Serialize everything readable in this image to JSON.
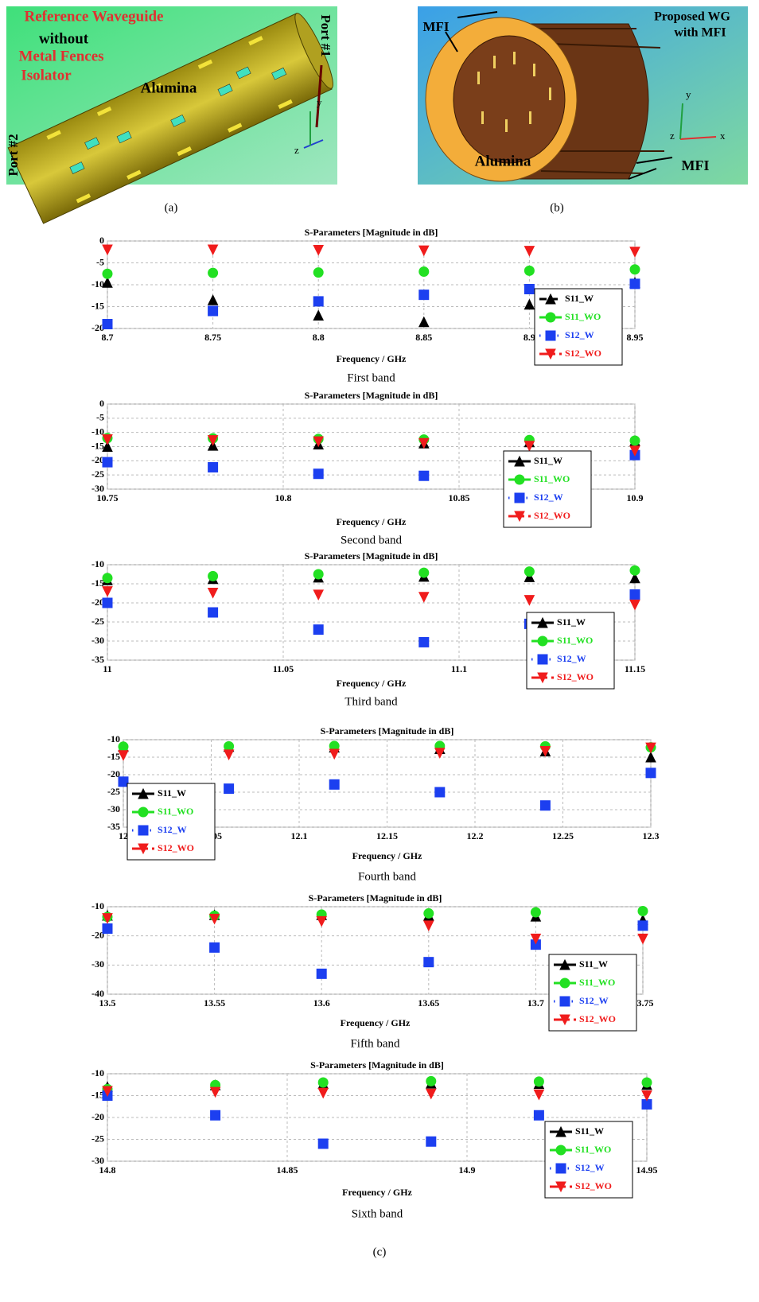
{
  "panel_a": {
    "texts": [
      "Reference Waveguide",
      "without",
      "Metal Fences",
      "Isolator",
      "Alumina",
      "Port #1",
      "Port #2"
    ],
    "axes": [
      "y",
      "z"
    ],
    "caption": "(a)"
  },
  "panel_b": {
    "texts": [
      "MFI",
      "Proposed WG",
      "with MFI",
      "Alumina",
      "MFI"
    ],
    "axes": [
      "y",
      "z",
      "x"
    ],
    "caption": "(b)"
  },
  "panel_c_caption": "(c)",
  "chart_data": [
    {
      "type": "line",
      "title": "S-Parameters [Magnitude in dB]",
      "x_label": "Frequency / GHz",
      "caption": "First band",
      "x": [
        8.7,
        8.725,
        8.75,
        8.775,
        8.8,
        8.825,
        8.85,
        8.875,
        8.9,
        8.925,
        8.95
      ],
      "xlim": [
        8.7,
        8.95
      ],
      "xticks": [
        8.7,
        8.75,
        8.8,
        8.85,
        8.9,
        8.95
      ],
      "ylim": [
        -20,
        0
      ],
      "yticks": [
        0,
        -5,
        -10,
        -15,
        -20
      ],
      "grid": true,
      "series": [
        {
          "name": "S11_W",
          "color": "#000000",
          "line_style": "dashed",
          "marker": "triangle-up",
          "values": [
            -9.5,
            -11.5,
            -13.5,
            -15,
            -17,
            -18.3,
            -18.5,
            -16.5,
            -14.5,
            -12,
            -9.5
          ]
        },
        {
          "name": "S11_WO",
          "color": "#22e022",
          "line_style": "solid",
          "marker": "circle",
          "values": [
            -7.5,
            -7.4,
            -7.3,
            -7.3,
            -7.2,
            -7.1,
            -7,
            -6.9,
            -6.8,
            -6.7,
            -6.5
          ]
        },
        {
          "name": "S12_W",
          "color": "#1c3ff0",
          "line_style": "dotted",
          "marker": "square",
          "values": [
            -19,
            -17.5,
            -16,
            -14.8,
            -13.8,
            -13,
            -12.3,
            -11.7,
            -11,
            -10.3,
            -9.8
          ]
        },
        {
          "name": "S12_WO",
          "color": "#f01c1c",
          "line_style": "dashdot",
          "marker": "triangle-down",
          "values": [
            -2,
            -2,
            -2,
            -2.1,
            -2.1,
            -2.2,
            -2.2,
            -2.3,
            -2.3,
            -2.4,
            -2.5
          ]
        }
      ]
    },
    {
      "type": "line",
      "title": "S-Parameters [Magnitude in dB]",
      "x_label": "Frequency / GHz",
      "caption": "Second band",
      "x": [
        10.75,
        10.765,
        10.78,
        10.795,
        10.81,
        10.825,
        10.84,
        10.855,
        10.87,
        10.885,
        10.9
      ],
      "xlim": [
        10.75,
        10.9
      ],
      "xticks": [
        10.75,
        10.8,
        10.85,
        10.9
      ],
      "ylim": [
        -30,
        0
      ],
      "yticks": [
        0,
        -5,
        -10,
        -15,
        -20,
        -25,
        -30
      ],
      "grid": true,
      "series": [
        {
          "name": "S11_W",
          "color": "#000000",
          "line_style": "solid",
          "marker": "triangle-up",
          "values": [
            -15,
            -14.8,
            -14.6,
            -14.4,
            -14.2,
            -14,
            -13.8,
            -13.6,
            -13.4,
            -13.2,
            -13
          ]
        },
        {
          "name": "S11_WO",
          "color": "#22e022",
          "line_style": "solid",
          "marker": "circle",
          "values": [
            -12,
            -12,
            -12.1,
            -12.2,
            -12.3,
            -12.4,
            -12.5,
            -12.6,
            -12.7,
            -12.8,
            -12.9
          ]
        },
        {
          "name": "S12_W",
          "color": "#1c3ff0",
          "line_style": "dotted",
          "marker": "square",
          "values": [
            -20.5,
            -21.3,
            -22.3,
            -23.5,
            -24.6,
            -25.1,
            -25.3,
            -24.6,
            -23,
            -20.5,
            -18
          ]
        },
        {
          "name": "S12_WO",
          "color": "#f01c1c",
          "line_style": "dashdot",
          "marker": "triangle-down",
          "values": [
            -12.5,
            -12.6,
            -12.8,
            -13,
            -13.2,
            -13.5,
            -13.8,
            -14.2,
            -14.8,
            -15.5,
            -16.5
          ]
        }
      ]
    },
    {
      "type": "line",
      "title": "S-Parameters [Magnitude in dB]",
      "x_label": "Frequency / GHz",
      "caption": "Third band",
      "x": [
        11,
        11.015,
        11.03,
        11.045,
        11.06,
        11.075,
        11.09,
        11.105,
        11.12,
        11.135,
        11.15
      ],
      "xlim": [
        11,
        11.15
      ],
      "xticks": [
        11,
        11.05,
        11.1,
        11.15
      ],
      "ylim": [
        -35,
        -10
      ],
      "yticks": [
        -10,
        -15,
        -20,
        -25,
        -30,
        -35
      ],
      "grid": true,
      "series": [
        {
          "name": "S11_W",
          "color": "#000000",
          "line_style": "solid",
          "marker": "triangle-up",
          "values": [
            -14,
            -13.9,
            -13.7,
            -13.5,
            -13.3,
            -13.2,
            -13.1,
            -13.1,
            -13.2,
            -13.3,
            -13.5
          ]
        },
        {
          "name": "S11_WO",
          "color": "#22e022",
          "line_style": "solid",
          "marker": "circle",
          "values": [
            -13.5,
            -13.3,
            -13,
            -12.8,
            -12.5,
            -12.3,
            -12.1,
            -12,
            -11.8,
            -11.7,
            -11.5
          ]
        },
        {
          "name": "S12_W",
          "color": "#1c3ff0",
          "line_style": "dotted",
          "marker": "square",
          "values": [
            -20,
            -20.8,
            -22.5,
            -24.5,
            -27,
            -29.5,
            -30.3,
            -28.5,
            -25.5,
            -22,
            -17.8
          ]
        },
        {
          "name": "S12_WO",
          "color": "#f01c1c",
          "line_style": "dashdot",
          "marker": "triangle-down",
          "values": [
            -17,
            -17.2,
            -17.4,
            -17.6,
            -17.9,
            -18.2,
            -18.5,
            -18.9,
            -19.3,
            -19.8,
            -20.5
          ]
        }
      ]
    },
    {
      "type": "line",
      "title": "S-Parameters [Magnitude in dB]",
      "x_label": "Frequency / GHz",
      "caption": "Fourth band",
      "x": [
        12,
        12.03,
        12.06,
        12.09,
        12.12,
        12.15,
        12.18,
        12.21,
        12.24,
        12.27,
        12.3
      ],
      "xlim": [
        12,
        12.3
      ],
      "xticks": [
        12,
        12.05,
        12.1,
        12.15,
        12.2,
        12.25,
        12.3
      ],
      "ylim": [
        -35,
        -10
      ],
      "yticks": [
        -10,
        -15,
        -20,
        -25,
        -30,
        -35
      ],
      "grid": true,
      "series": [
        {
          "name": "S11_W",
          "color": "#000000",
          "line_style": "solid",
          "marker": "triangle-up",
          "values": [
            -12,
            -12,
            -12,
            -12.1,
            -12.2,
            -12.4,
            -12.6,
            -12.9,
            -13.3,
            -14,
            -15
          ]
        },
        {
          "name": "S11_WO",
          "color": "#22e022",
          "line_style": "solid",
          "marker": "circle",
          "values": [
            -12,
            -11.9,
            -11.9,
            -11.8,
            -11.8,
            -11.8,
            -11.8,
            -11.9,
            -11.9,
            -12,
            -12.2
          ]
        },
        {
          "name": "S12_W",
          "color": "#1c3ff0",
          "line_style": "dotted",
          "marker": "square",
          "values": [
            -22,
            -23.5,
            -24,
            -23,
            -22.8,
            -23.2,
            -25,
            -28,
            -28.8,
            -23.5,
            -19.5
          ]
        },
        {
          "name": "S12_WO",
          "color": "#f01c1c",
          "line_style": "dashdot",
          "marker": "triangle-down",
          "values": [
            -14.5,
            -14.4,
            -14.3,
            -14.2,
            -14.1,
            -14,
            -13.8,
            -13.6,
            -13.3,
            -12.8,
            -12.3
          ]
        }
      ]
    },
    {
      "type": "line",
      "title": "S-Parameters [Magnitude in dB]",
      "x_label": "Frequency / GHz",
      "caption": "Fifth band",
      "x": [
        13.5,
        13.525,
        13.55,
        13.575,
        13.6,
        13.625,
        13.65,
        13.675,
        13.7,
        13.725,
        13.75
      ],
      "xlim": [
        13.5,
        13.75
      ],
      "xticks": [
        13.5,
        13.55,
        13.6,
        13.65,
        13.7,
        13.75
      ],
      "ylim": [
        -40,
        -10
      ],
      "yticks": [
        -10,
        -20,
        -30,
        -40
      ],
      "grid": true,
      "series": [
        {
          "name": "S11_W",
          "color": "#000000",
          "line_style": "solid",
          "marker": "triangle-up",
          "values": [
            -13,
            -12.9,
            -12.8,
            -12.8,
            -12.8,
            -12.9,
            -13,
            -13.1,
            -13.3,
            -13.7,
            -14.5
          ]
        },
        {
          "name": "S11_WO",
          "color": "#22e022",
          "line_style": "solid",
          "marker": "circle",
          "values": [
            -13.5,
            -13.3,
            -13.1,
            -12.9,
            -12.7,
            -12.5,
            -12.3,
            -12.1,
            -11.9,
            -11.7,
            -11.5
          ]
        },
        {
          "name": "S12_W",
          "color": "#1c3ff0",
          "line_style": "dotted",
          "marker": "square",
          "values": [
            -17.5,
            -20.5,
            -24,
            -28.5,
            -33,
            -35.5,
            -29,
            -25.5,
            -23,
            -20,
            -16.5
          ]
        },
        {
          "name": "S12_WO",
          "color": "#f01c1c",
          "line_style": "dashdot",
          "marker": "triangle-down",
          "values": [
            -14,
            -14,
            -14.2,
            -14.5,
            -15,
            -15.5,
            -16.5,
            -18,
            -21,
            -24,
            -21
          ]
        }
      ]
    },
    {
      "type": "line",
      "title": "S-Parameters [Magnitude in dB]",
      "x_label": "Frequency / GHz",
      "caption": "Sixth band",
      "x": [
        14.8,
        14.815,
        14.83,
        14.845,
        14.86,
        14.875,
        14.89,
        14.905,
        14.92,
        14.935,
        14.95
      ],
      "xlim": [
        14.8,
        14.95
      ],
      "xticks": [
        14.8,
        14.85,
        14.9,
        14.95
      ],
      "ylim": [
        -30,
        -10
      ],
      "yticks": [
        -10,
        -15,
        -20,
        -25,
        -30
      ],
      "grid": true,
      "series": [
        {
          "name": "S11_W",
          "color": "#000000",
          "line_style": "solid",
          "marker": "triangle-up",
          "values": [
            -13,
            -12.8,
            -12.6,
            -12.4,
            -12.3,
            -12.2,
            -12.2,
            -12.2,
            -12.3,
            -12.4,
            -12.5
          ]
        },
        {
          "name": "S11_WO",
          "color": "#22e022",
          "line_style": "solid",
          "marker": "circle",
          "values": [
            -13.5,
            -13,
            -12.6,
            -12.3,
            -12,
            -11.8,
            -11.7,
            -11.7,
            -11.8,
            -11.9,
            -12
          ]
        },
        {
          "name": "S12_W",
          "color": "#1c3ff0",
          "line_style": "dotted",
          "marker": "square",
          "values": [
            -15,
            -16.5,
            -19.5,
            -22.5,
            -26,
            -29,
            -25.5,
            -21.5,
            -19.5,
            -18,
            -17
          ]
        },
        {
          "name": "S12_WO",
          "color": "#f01c1c",
          "line_style": "dashdot",
          "marker": "triangle-down",
          "values": [
            -14,
            -14.1,
            -14.2,
            -14.3,
            -14.4,
            -14.5,
            -14.6,
            -14.7,
            -14.8,
            -14.9,
            -15
          ]
        }
      ]
    }
  ]
}
